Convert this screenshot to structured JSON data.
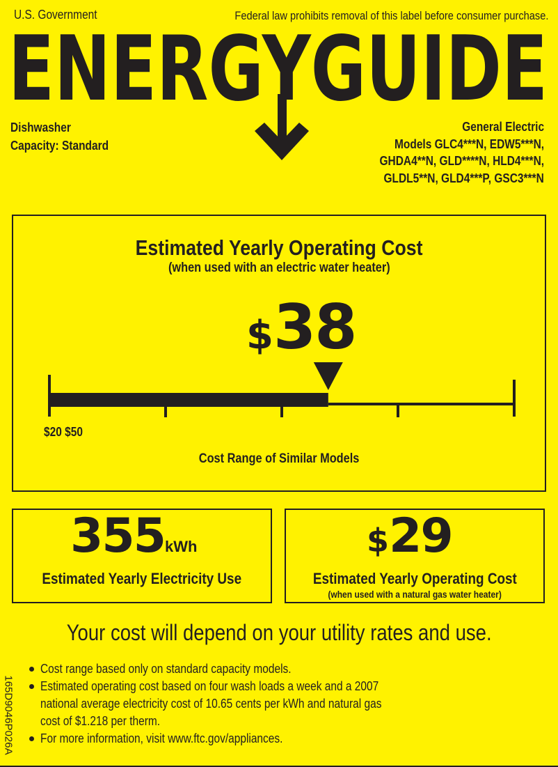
{
  "header": {
    "government": "U.S. Government",
    "notice": "Federal law prohibits removal of this label before consumer purchase.",
    "logo_text": "ENERGYGUIDE"
  },
  "product": {
    "type": "Dishwasher",
    "capacity": "Capacity: Standard",
    "manufacturer": "General Electric",
    "models": [
      "Models GLC4***N, EDW5***N,",
      "GHDA4**N, GLD****N, HLD4***N,",
      "GLDL5**N, GLD4***P, GSC3***N"
    ]
  },
  "main_cost": {
    "title": "Estimated Yearly Operating Cost",
    "subtitle": "(when used with an electric water heater)",
    "currency": "$",
    "amount": "38",
    "range_label": "$20 $50",
    "range_caption": "Cost Range of Similar Models",
    "scale": {
      "min": 20,
      "max": 50,
      "value": 38
    }
  },
  "electricity": {
    "amount": "355",
    "unit": "kWh",
    "label": "Estimated Yearly Electricity Use"
  },
  "gas_cost": {
    "currency": "$",
    "amount": "29",
    "label": "Estimated Yearly Operating Cost",
    "sublabel": "(when used with a natural gas water heater)"
  },
  "disclaimer": "Your cost will depend on your utility rates and use.",
  "notes": [
    "Cost range based only on standard capacity models.",
    "Estimated operating cost based on four wash loads a week and a 2007",
    "national average electricity cost of 10.65 cents per kWh and natural gas",
    "cost of $1.218 per therm.",
    "For more information, visit www.ftc.gov/appliances."
  ],
  "label_code": "165D9046P026A",
  "colors": {
    "background": "#FFF200",
    "ink": "#231f20"
  }
}
